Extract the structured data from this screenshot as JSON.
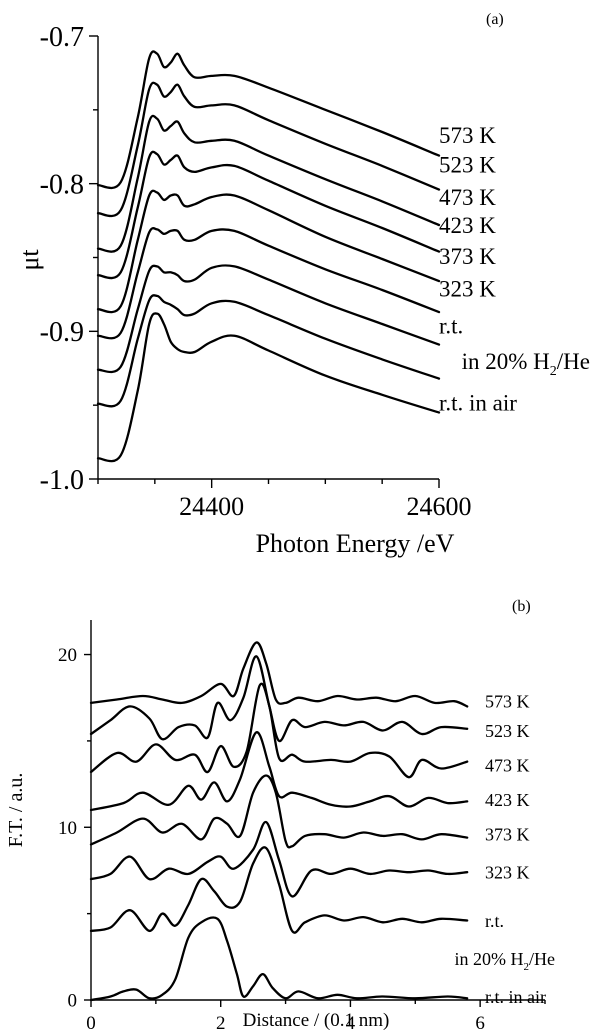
{
  "chart_data": [
    {
      "type": "line",
      "panel_label": "(a)",
      "xlabel": "Photon Energy /eV",
      "ylabel": "μt",
      "xlim": [
        24300,
        24600
      ],
      "ylim": [
        -1.0,
        -0.7
      ],
      "x_ticks": [
        24400,
        24600
      ],
      "y_ticks": [
        {
          "value": -1.0,
          "label": "-1.0"
        },
        {
          "value": -0.9,
          "label": "-0.9"
        },
        {
          "value": -0.8,
          "label": "-0.8"
        },
        {
          "value": -0.7,
          "label": "-0.7"
        }
      ],
      "x_tick_labels": [
        "24400",
        "24600"
      ],
      "grid": false,
      "series": [
        {
          "name": "573 K",
          "x": [
            24300,
            24320,
            24335,
            24345,
            24352,
            24358,
            24364,
            24370,
            24376,
            24385,
            24400,
            24420,
            24450,
            24500,
            24550,
            24600
          ],
          "y": [
            -0.801,
            -0.799,
            -0.755,
            -0.715,
            -0.712,
            -0.721,
            -0.718,
            -0.712,
            -0.72,
            -0.728,
            -0.727,
            -0.727,
            -0.735,
            -0.75,
            -0.765,
            -0.781
          ]
        },
        {
          "name": "523 K",
          "x": [
            24300,
            24320,
            24335,
            24345,
            24352,
            24358,
            24364,
            24370,
            24376,
            24385,
            24400,
            24420,
            24450,
            24500,
            24550,
            24600
          ],
          "y": [
            -0.82,
            -0.818,
            -0.774,
            -0.736,
            -0.733,
            -0.741,
            -0.738,
            -0.733,
            -0.741,
            -0.748,
            -0.747,
            -0.747,
            -0.757,
            -0.773,
            -0.788,
            -0.804
          ]
        },
        {
          "name": "473 K",
          "x": [
            24300,
            24320,
            24335,
            24345,
            24352,
            24358,
            24364,
            24370,
            24376,
            24385,
            24400,
            24420,
            24450,
            24500,
            24550,
            24600
          ],
          "y": [
            -0.844,
            -0.842,
            -0.796,
            -0.758,
            -0.756,
            -0.764,
            -0.761,
            -0.758,
            -0.766,
            -0.772,
            -0.771,
            -0.771,
            -0.781,
            -0.797,
            -0.812,
            -0.828
          ]
        },
        {
          "name": "423 K",
          "x": [
            24300,
            24320,
            24335,
            24345,
            24352,
            24358,
            24364,
            24370,
            24376,
            24385,
            24400,
            24420,
            24450,
            24500,
            24550,
            24600
          ],
          "y": [
            -0.862,
            -0.86,
            -0.816,
            -0.782,
            -0.78,
            -0.787,
            -0.784,
            -0.781,
            -0.789,
            -0.792,
            -0.789,
            -0.788,
            -0.798,
            -0.815,
            -0.83,
            -0.846
          ]
        },
        {
          "name": "373 K",
          "x": [
            24300,
            24320,
            24335,
            24345,
            24352,
            24358,
            24364,
            24370,
            24376,
            24385,
            24400,
            24420,
            24450,
            24500,
            24550,
            24600
          ],
          "y": [
            -0.885,
            -0.883,
            -0.838,
            -0.808,
            -0.806,
            -0.811,
            -0.808,
            -0.808,
            -0.815,
            -0.814,
            -0.809,
            -0.808,
            -0.818,
            -0.836,
            -0.851,
            -0.866
          ]
        },
        {
          "name": "323 K",
          "x": [
            24300,
            24320,
            24335,
            24345,
            24352,
            24358,
            24364,
            24370,
            24376,
            24385,
            24400,
            24420,
            24450,
            24500,
            24550,
            24600
          ],
          "y": [
            -0.903,
            -0.901,
            -0.86,
            -0.833,
            -0.831,
            -0.834,
            -0.832,
            -0.832,
            -0.838,
            -0.838,
            -0.832,
            -0.832,
            -0.842,
            -0.858,
            -0.872,
            -0.887
          ]
        },
        {
          "name": "r.t. in 20% H2/He",
          "x": [
            24300,
            24320,
            24335,
            24345,
            24352,
            24358,
            24364,
            24370,
            24376,
            24385,
            24400,
            24420,
            24450,
            24500,
            24550,
            24600
          ],
          "y": [
            -0.926,
            -0.924,
            -0.885,
            -0.859,
            -0.856,
            -0.86,
            -0.86,
            -0.862,
            -0.866,
            -0.865,
            -0.857,
            -0.856,
            -0.865,
            -0.881,
            -0.895,
            -0.909
          ]
        },
        {
          "name": "",
          "x": [
            24300,
            24320,
            24335,
            24345,
            24352,
            24358,
            24364,
            24370,
            24376,
            24385,
            24400,
            24420,
            24450,
            24500,
            24550,
            24600
          ],
          "y": [
            -0.949,
            -0.947,
            -0.905,
            -0.879,
            -0.876,
            -0.88,
            -0.882,
            -0.885,
            -0.889,
            -0.888,
            -0.881,
            -0.88,
            -0.889,
            -0.905,
            -0.919,
            -0.932
          ]
        },
        {
          "name": "r.t. in air",
          "x": [
            24300,
            24320,
            24335,
            24345,
            24352,
            24358,
            24364,
            24370,
            24376,
            24385,
            24400,
            24420,
            24450,
            24500,
            24550,
            24600
          ],
          "y": [
            -0.986,
            -0.984,
            -0.94,
            -0.895,
            -0.888,
            -0.895,
            -0.907,
            -0.912,
            -0.914,
            -0.914,
            -0.907,
            -0.903,
            -0.913,
            -0.93,
            -0.943,
            -0.955
          ]
        }
      ],
      "curve_labels": [
        {
          "text": "573 K",
          "y": -0.767
        },
        {
          "text": "523 K",
          "y": -0.787
        },
        {
          "text": "473 K",
          "y": -0.809
        },
        {
          "text": "423 K",
          "y": -0.828
        },
        {
          "text": "373 K",
          "y": -0.849
        },
        {
          "text": "323 K",
          "y": -0.871
        },
        {
          "text": "r.t.",
          "y": -0.896
        },
        {
          "text": "r.t. in air",
          "y": -0.948
        }
      ],
      "annotation": {
        "prefix": "in 20% H",
        "subscript": "2",
        "suffix": "/He",
        "y": -0.92
      }
    },
    {
      "type": "line",
      "panel_label": "(b)",
      "xlabel": "Distance / (0.1 nm)",
      "ylabel": "F.T. / a.u.",
      "xlim": [
        0,
        7
      ],
      "ylim": [
        0,
        22
      ],
      "x_ticks": [
        0,
        2,
        4,
        6
      ],
      "x_tick_labels": [
        "0",
        "2",
        "4",
        "6"
      ],
      "y_ticks": [
        {
          "value": 0,
          "label": "0"
        },
        {
          "value": 10,
          "label": "10"
        },
        {
          "value": 20,
          "label": "20"
        }
      ],
      "grid": false,
      "series": [
        {
          "name": "573 K",
          "x": [
            0,
            0.4,
            0.8,
            1.1,
            1.4,
            1.7,
            2,
            2.2,
            2.35,
            2.55,
            2.7,
            2.85,
            3,
            3.2,
            3.5,
            3.8,
            4.1,
            4.4,
            4.7,
            5,
            5.3,
            5.6,
            5.8
          ],
          "y": [
            17.2,
            17.4,
            17.6,
            17.4,
            17.2,
            17.6,
            18.3,
            17.6,
            19.2,
            20.7,
            19.5,
            17.4,
            17.2,
            17.5,
            17.3,
            17.6,
            17.4,
            17.5,
            17.3,
            17.6,
            17.2,
            17.3,
            17.0
          ]
        },
        {
          "name": "523 K",
          "x": [
            0,
            0.3,
            0.6,
            0.9,
            1.1,
            1.35,
            1.6,
            1.8,
            1.95,
            2.15,
            2.35,
            2.55,
            2.75,
            2.9,
            3.1,
            3.3,
            3.6,
            3.9,
            4.2,
            4.5,
            4.8,
            5.1,
            5.4,
            5.8
          ],
          "y": [
            15.4,
            16.2,
            17.0,
            16.3,
            15.1,
            15.8,
            15.9,
            15.2,
            17.2,
            16.2,
            17.5,
            19.9,
            17.0,
            15.0,
            16.2,
            15.8,
            16.1,
            15.9,
            16.1,
            15.6,
            16.1,
            15.4,
            15.8,
            15.7
          ]
        },
        {
          "name": "473 K",
          "x": [
            0,
            0.4,
            0.7,
            1,
            1.3,
            1.6,
            1.8,
            2,
            2.2,
            2.4,
            2.6,
            2.75,
            2.9,
            3.1,
            3.3,
            3.7,
            4,
            4.3,
            4.6,
            4.9,
            5.1,
            5.4,
            5.8
          ],
          "y": [
            13.2,
            14.3,
            13.8,
            14.8,
            13.9,
            14.2,
            13.2,
            14.7,
            13.5,
            14.4,
            18.2,
            17.0,
            14.0,
            14.2,
            13.8,
            13.9,
            13.8,
            14.3,
            14.1,
            12.9,
            13.9,
            13.4,
            13.8
          ]
        },
        {
          "name": "423 K",
          "x": [
            0,
            0.5,
            0.8,
            1.2,
            1.5,
            1.7,
            1.9,
            2.1,
            2.3,
            2.55,
            2.75,
            2.9,
            3.1,
            3.4,
            3.7,
            4,
            4.3,
            4.6,
            4.9,
            5.2,
            5.5,
            5.8
          ],
          "y": [
            11.0,
            11.4,
            12.0,
            11.3,
            12.4,
            11.6,
            12.6,
            11.5,
            12.8,
            15.5,
            13.5,
            11.8,
            12.0,
            11.7,
            11.3,
            11.2,
            11.5,
            11.8,
            11.2,
            11.7,
            11.4,
            11.5
          ]
        },
        {
          "name": "373 K",
          "x": [
            0,
            0.4,
            0.8,
            1.1,
            1.4,
            1.7,
            1.9,
            2.1,
            2.3,
            2.5,
            2.7,
            2.85,
            3,
            3.1,
            3.3,
            3.6,
            3.9,
            4.2,
            4.5,
            4.8,
            5.1,
            5.4,
            5.8
          ],
          "y": [
            9.0,
            9.7,
            10.5,
            9.7,
            10.2,
            9.3,
            10.5,
            10.2,
            9.5,
            12.0,
            13.0,
            12.0,
            9.2,
            8.9,
            9.5,
            9.6,
            9.4,
            9.7,
            9.5,
            9.6,
            9.3,
            9.6,
            9.4
          ]
        },
        {
          "name": "323 K",
          "x": [
            0,
            0.3,
            0.6,
            0.9,
            1.2,
            1.5,
            1.8,
            2,
            2.2,
            2.5,
            2.7,
            2.9,
            3.1,
            3.4,
            3.7,
            4,
            4.3,
            4.6,
            4.9,
            5.2,
            5.5,
            5.8
          ],
          "y": [
            7.0,
            7.3,
            8.3,
            7.0,
            7.6,
            7.3,
            8.0,
            8.3,
            7.6,
            8.7,
            10.3,
            8.1,
            6.0,
            7.5,
            7.3,
            7.6,
            7.3,
            7.5,
            7.4,
            7.5,
            7.3,
            7.4
          ]
        },
        {
          "name": "r.t. in 20% H2/He",
          "x": [
            0,
            0.3,
            0.6,
            0.9,
            1.1,
            1.3,
            1.5,
            1.7,
            1.9,
            2.1,
            2.3,
            2.5,
            2.7,
            2.9,
            3.1,
            3.3,
            3.6,
            3.9,
            4.2,
            4.5,
            4.8,
            5.1,
            5.4,
            5.8
          ],
          "y": [
            4.0,
            4.2,
            5.2,
            4.0,
            5.0,
            4.3,
            5.5,
            7.0,
            6.3,
            5.4,
            5.7,
            7.9,
            8.8,
            6.7,
            4.0,
            4.5,
            4.9,
            4.6,
            4.8,
            4.5,
            4.7,
            4.5,
            4.7,
            4.6
          ]
        },
        {
          "name": "r.t. in air",
          "x": [
            0,
            0.3,
            0.5,
            0.7,
            0.9,
            1.1,
            1.3,
            1.5,
            1.7,
            1.95,
            2.1,
            2.25,
            2.35,
            2.5,
            2.65,
            2.8,
            3,
            3.2,
            3.5,
            3.8,
            4.1,
            4.5,
            5,
            5.5,
            5.8
          ],
          "y": [
            0.0,
            0.2,
            0.5,
            0.6,
            0.1,
            0.3,
            1.2,
            3.6,
            4.5,
            4.7,
            3.4,
            1.5,
            0.2,
            0.8,
            1.5,
            0.7,
            0.1,
            0.5,
            0.1,
            0.3,
            0.1,
            0.2,
            0.1,
            0.2,
            0.1
          ]
        }
      ],
      "curve_labels": [
        {
          "text": "573 K",
          "y": 17.3
        },
        {
          "text": "523 K",
          "y": 15.6
        },
        {
          "text": "473 K",
          "y": 13.6
        },
        {
          "text": "423 K",
          "y": 11.6
        },
        {
          "text": "373 K",
          "y": 9.6
        },
        {
          "text": "323 K",
          "y": 7.4
        },
        {
          "text": "r.t.",
          "y": 4.6
        },
        {
          "text": "r.t. in air",
          "y": 0.2
        }
      ],
      "annotation": {
        "prefix": "in 20% H",
        "subscript": "2",
        "suffix": "/He",
        "y": 2.4
      }
    }
  ]
}
